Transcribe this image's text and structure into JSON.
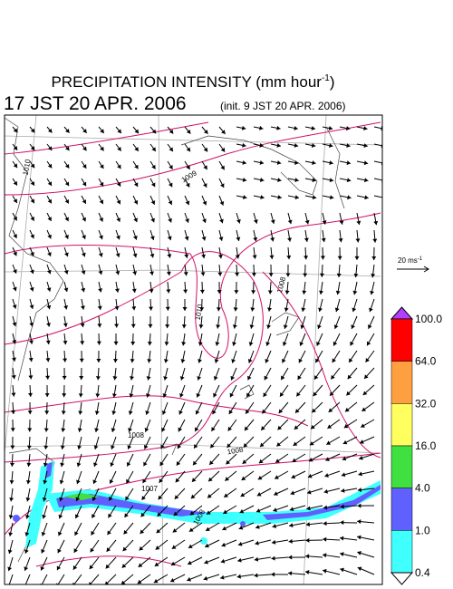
{
  "header": {
    "title": {
      "main": "PRECIPITATION INTENSITY (mm hour",
      "sup": "-1",
      "close": ")"
    },
    "valid_time": "17 JST 20 APR. 2006",
    "init_time": "(init. 9 JST 20 APR. 2006)"
  },
  "wind_scale": {
    "label": "20 ms",
    "sup": "-1"
  },
  "isobar_labels": [
    "1010",
    "1009",
    "1010",
    "1008",
    "1008",
    "1008",
    "1007",
    "1008"
  ],
  "colorbar": {
    "levels": [
      "100.0",
      "64.0",
      "32.0",
      "16.0",
      "4.0",
      "1.0",
      "0.4"
    ],
    "colors": [
      "#ff0000",
      "#ffa040",
      "#ffff60",
      "#40e040",
      "#6060ff",
      "#40ffff"
    ],
    "over_color": "#b040ff",
    "under_color": "#ffffff"
  }
}
